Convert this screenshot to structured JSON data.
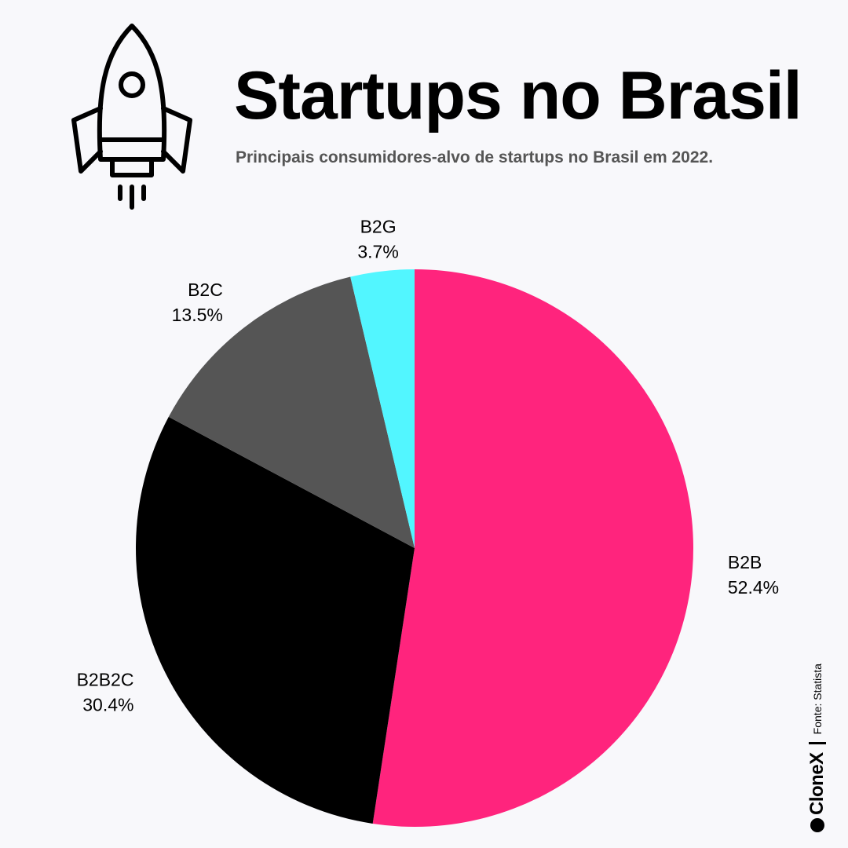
{
  "header": {
    "title": "Startups no Brasil",
    "subtitle": "Principais consumidores-alvo de startups no Brasil em 2022."
  },
  "icons": {
    "header_icon": "rocket-icon"
  },
  "chart_data": {
    "type": "pie",
    "title": "Startups no Brasil",
    "subtitle": "Principais consumidores-alvo de startups no Brasil em 2022.",
    "slices": [
      {
        "label": "B2B",
        "value": 52.4,
        "value_label": "52.4%",
        "color": "#ff247d"
      },
      {
        "label": "B2B2C",
        "value": 30.4,
        "value_label": "30.4%",
        "color": "#000000"
      },
      {
        "label": "B2C",
        "value": 13.5,
        "value_label": "13.5%",
        "color": "#555555"
      },
      {
        "label": "B2G",
        "value": 3.7,
        "value_label": "3.7%",
        "color": "#52f6ff"
      }
    ],
    "start_angle": "12 o'clock",
    "direction": "clockwise"
  },
  "footer": {
    "brand": "CloneX",
    "source": "Fonte: Statista"
  }
}
